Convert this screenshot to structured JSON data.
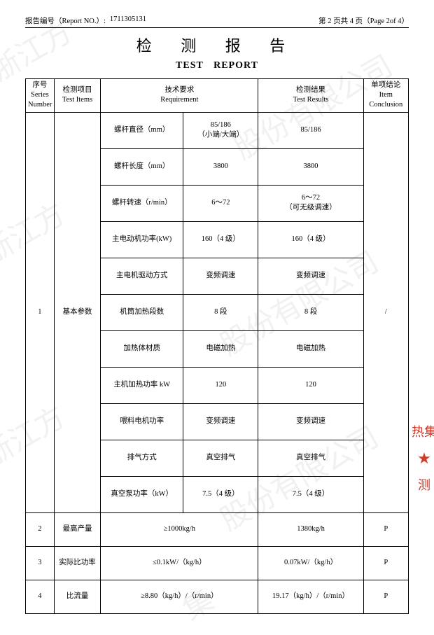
{
  "header": {
    "report_no_label": "报告编号（Report NO.）:",
    "report_no_value": "1711305131",
    "page_info": "第 2 页共 4 页（Page 2of 4）"
  },
  "titles": {
    "cn": "检 测 报 告",
    "en": "TEST REPORT"
  },
  "columns": {
    "series": "序号\nSeries\nNumber",
    "items": "检测项目\nTest Items",
    "requirement": "技术要求\nRequirement",
    "results": "检测结果\nTest Results",
    "conclusion": "单项结论\nItem\nConclusion"
  },
  "group1": {
    "series": "1",
    "item": "基本参数",
    "conclusion": "/",
    "rows": [
      {
        "req_a": "螺杆直径（mm）",
        "req_b": "85/186\n（小端/大端）",
        "result": "85/186"
      },
      {
        "req_a": "螺杆长度（mm）",
        "req_b": "3800",
        "result": "3800"
      },
      {
        "req_a": "螺杆转速（r/min）",
        "req_b": "6～72",
        "result": "6～72\n（可无级调速）"
      },
      {
        "req_a": "主电动机功率(kW)",
        "req_b": "160（4 级）",
        "result": "160（4 级）"
      },
      {
        "req_a": "主电机驱动方式",
        "req_b": "变频调速",
        "result": "变频调速"
      },
      {
        "req_a": "机筒加热段数",
        "req_b": "8 段",
        "result": "8 段"
      },
      {
        "req_a": "加热体材质",
        "req_b": "电磁加热",
        "result": "电磁加热"
      },
      {
        "req_a": "主机加热功率 kW",
        "req_b": "120",
        "result": "120"
      },
      {
        "req_a": "喂料电机功率",
        "req_b": "变频调速",
        "result": "变频调速"
      },
      {
        "req_a": "排气方式",
        "req_b": "真空排气",
        "result": "真空排气"
      },
      {
        "req_a": "真空泵功率（kW）",
        "req_b": "7.5（4 级）",
        "result": "7.5（4 级）"
      }
    ]
  },
  "rows_tail": [
    {
      "series": "2",
      "item": "最高产量",
      "req": "≥1000kg/h",
      "result": "1380kg/h",
      "concl": "P"
    },
    {
      "series": "3",
      "item": "实际比功率",
      "req": "≤0.1kW/（kg/h）",
      "result": "0.07kW/（kg/h）",
      "concl": "P"
    },
    {
      "series": "4",
      "item": "比流量",
      "req": "≥8.80（kg/h）/（r/min）",
      "result": "19.17（kg/h）/（r/min）",
      "concl": "P"
    }
  ],
  "watermark_text_a": "浙江方",
  "watermark_text_b": "股份有限公司",
  "watermark_text_c": "集",
  "stamp": {
    "line1": "热集",
    "star": "★",
    "line2": "测"
  },
  "colors": {
    "text": "#000000",
    "border": "#000000",
    "background": "#ffffff",
    "watermark": "rgba(200,200,200,0.25)",
    "stamp": "#d23a2a"
  }
}
